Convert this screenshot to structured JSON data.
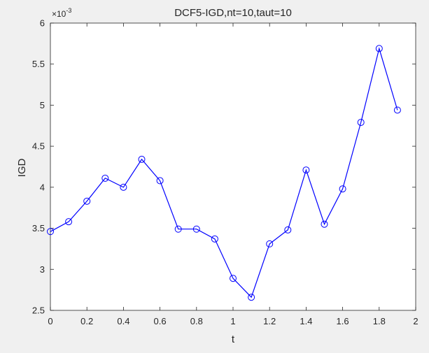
{
  "chart_data": {
    "type": "line",
    "title": "DCF5-IGD,nt=10,taut=10",
    "xlabel": "t",
    "ylabel": "IGD",
    "y_exponent_label": "×10",
    "y_exponent_power": "-3",
    "xlim": [
      0,
      2
    ],
    "ylim": [
      2.5,
      6
    ],
    "xticks": [
      0,
      0.2,
      0.4,
      0.6,
      0.8,
      1,
      1.2,
      1.4,
      1.6,
      1.8,
      2
    ],
    "xtick_labels": [
      "0",
      "0.2",
      "0.4",
      "0.6",
      "0.8",
      "1",
      "1.2",
      "1.4",
      "1.6",
      "1.8",
      "2"
    ],
    "yticks": [
      2.5,
      3,
      3.5,
      4,
      4.5,
      5,
      5.5,
      6
    ],
    "ytick_labels": [
      "2.5",
      "3",
      "3.5",
      "4",
      "4.5",
      "5",
      "5.5",
      "6"
    ],
    "grid": false,
    "marker": "circle",
    "line_color": "#0000ff",
    "series": [
      {
        "x": [
          0,
          0.1,
          0.2,
          0.3,
          0.4,
          0.5,
          0.6,
          0.7,
          0.8,
          0.9,
          1.0,
          1.1,
          1.2,
          1.3,
          1.4,
          1.5,
          1.6,
          1.7,
          1.8,
          1.9
        ],
        "y": [
          3.46,
          3.58,
          3.83,
          4.11,
          4.0,
          4.34,
          4.08,
          3.49,
          3.49,
          3.37,
          2.89,
          2.66,
          3.31,
          3.48,
          4.21,
          3.55,
          3.98,
          4.79,
          5.69,
          4.94
        ]
      }
    ]
  }
}
